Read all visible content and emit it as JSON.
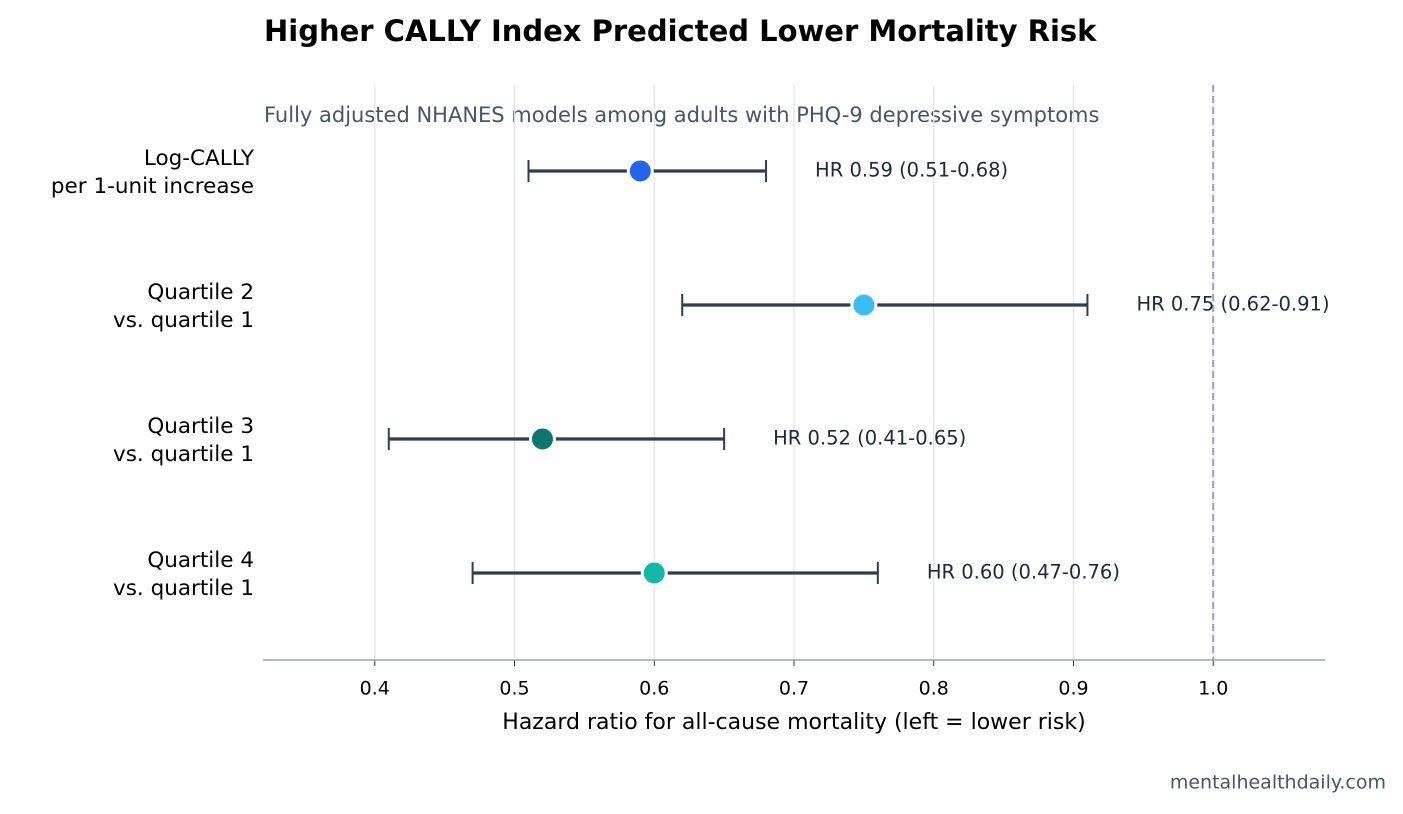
{
  "chart_data": {
    "type": "forest",
    "title": "Higher CALLY Index Predicted Lower Mortality Risk",
    "subtitle": "Fully adjusted NHANES models among adults with PHQ-9 depressive symptoms",
    "x_label": "Hazard ratio for all-cause mortality (left = lower risk)",
    "source": "mentalhealthdaily.com",
    "categories": [
      [
        "Log-CALLY",
        "per 1-unit increase"
      ],
      [
        "Quartile 2",
        "vs. quartile 1"
      ],
      [
        "Quartile 3",
        "vs. quartile 1"
      ],
      [
        "Quartile 4",
        "vs. quartile 1"
      ]
    ],
    "values": [
      0.59,
      0.75,
      0.52,
      0.6
    ],
    "lower": [
      0.51,
      0.62,
      0.41,
      0.47
    ],
    "upper": [
      0.68,
      0.91,
      0.65,
      0.76
    ],
    "value_labels": [
      "HR 0.59 (0.51-0.68)",
      "HR 0.75 (0.62-0.91)",
      "HR 0.52 (0.41-0.65)",
      "HR 0.60 (0.47-0.76)"
    ],
    "colors": [
      "#2563eb",
      "#38bdf8",
      "#0f766e",
      "#14b8a6"
    ],
    "ci_color": "#2d3e50",
    "xlim": [
      0.32,
      1.08
    ],
    "xticks": [
      0.4,
      0.5,
      0.6,
      0.7,
      0.8,
      0.9,
      {
        "value": 1,
        "label": "1.0"
      }
    ],
    "reference_line": 1,
    "grid": true
  }
}
